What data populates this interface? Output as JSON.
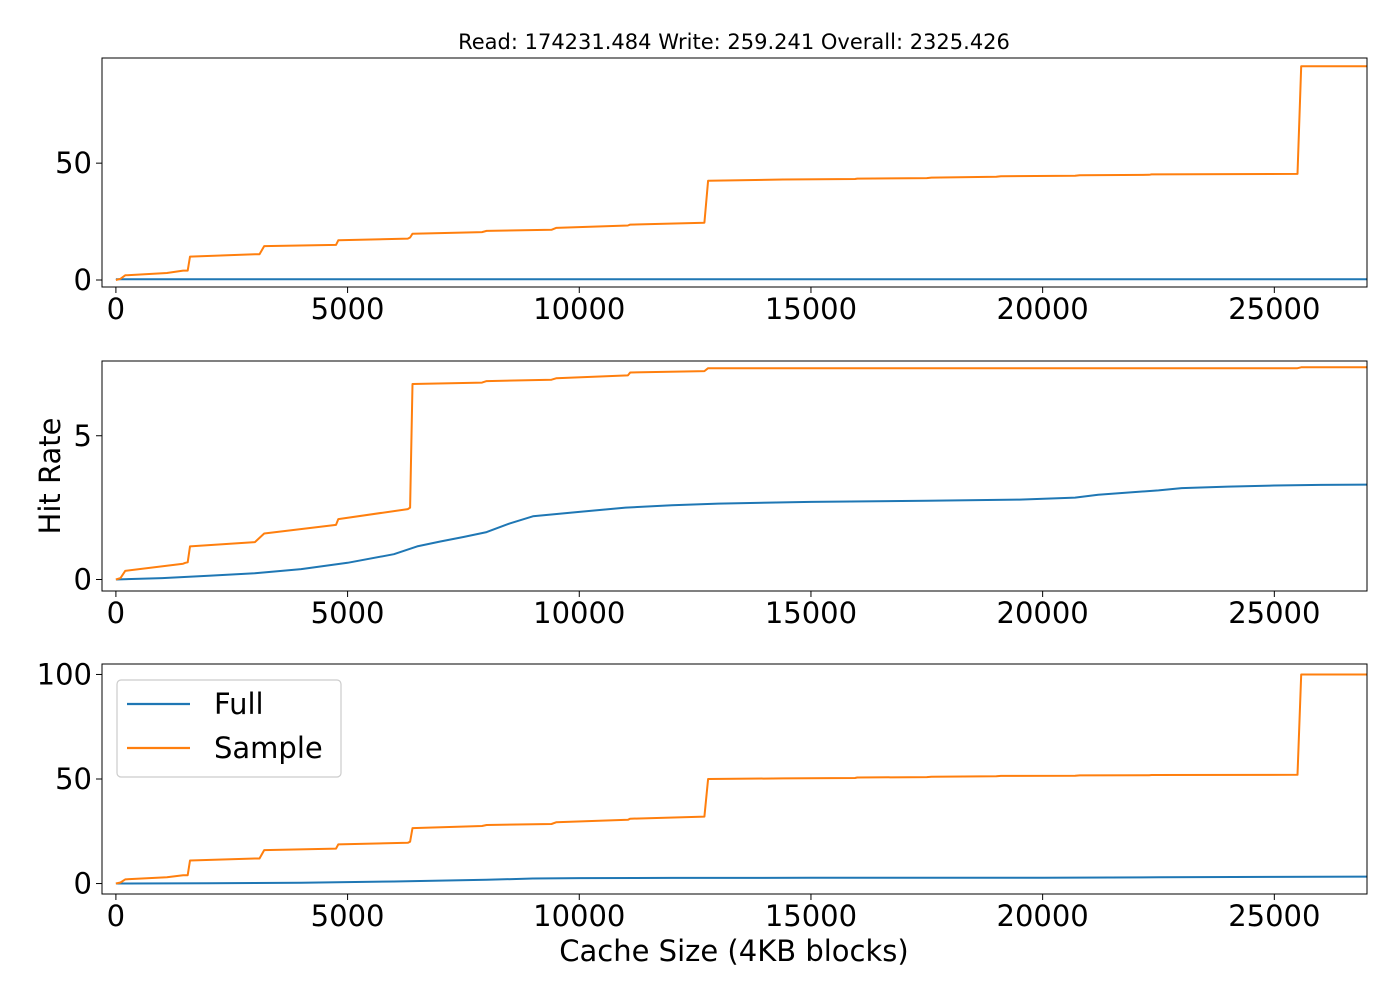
{
  "figure": {
    "title": "Read: 174231.484 Write: 259.241 Overall: 2325.426",
    "xlabel": "Cache Size (4KB blocks)",
    "ylabel": "Hit Rate"
  },
  "legend": {
    "location": "upper-left",
    "entries": [
      {
        "label": "Full",
        "color": "#1f77b4"
      },
      {
        "label": "Sample",
        "color": "#ff7f0e"
      }
    ]
  },
  "chart_data": [
    {
      "type": "line",
      "panel": "top",
      "xlim": [
        -300,
        27000
      ],
      "ylim": [
        -3,
        95
      ],
      "xticks": [
        0,
        5000,
        10000,
        15000,
        20000,
        25000
      ],
      "yticks": [
        0,
        50
      ],
      "series": [
        {
          "name": "Full",
          "color": "#1f77b4",
          "x": [
            0,
            27000
          ],
          "y": [
            0.3,
            0.3
          ]
        },
        {
          "name": "Sample",
          "color": "#ff7f0e",
          "x": [
            0,
            100,
            200,
            1100,
            1450,
            1550,
            1600,
            3000,
            3100,
            3200,
            4750,
            4800,
            6300,
            6350,
            6400,
            7900,
            8000,
            9400,
            9500,
            11050,
            11100,
            12700,
            12780,
            14400,
            15950,
            16000,
            17500,
            17600,
            19000,
            19100,
            20700,
            20800,
            22300,
            22350,
            25500,
            25580,
            27000
          ],
          "y": [
            0,
            0.5,
            2,
            3,
            4,
            4,
            10,
            11,
            11,
            14.5,
            15,
            17,
            17.7,
            18.2,
            19.8,
            20.5,
            21,
            21.5,
            22.3,
            23.3,
            23.7,
            24.5,
            42.5,
            43,
            43.2,
            43.4,
            43.6,
            43.8,
            44.2,
            44.4,
            44.6,
            44.8,
            45,
            45.2,
            45.4,
            91.5,
            91.5
          ]
        }
      ]
    },
    {
      "type": "line",
      "panel": "middle",
      "xlim": [
        -300,
        27000
      ],
      "ylim": [
        -0.4,
        7.6
      ],
      "xticks": [
        0,
        5000,
        10000,
        15000,
        20000,
        25000
      ],
      "yticks": [
        0,
        5
      ],
      "series": [
        {
          "name": "Full",
          "color": "#1f77b4",
          "x": [
            0,
            1000,
            2000,
            3000,
            4000,
            5000,
            6000,
            6500,
            7000,
            7500,
            8000,
            8500,
            9000,
            10000,
            11000,
            12000,
            13000,
            15000,
            17500,
            19500,
            20700,
            21200,
            22500,
            23000,
            24000,
            25000,
            26000,
            27000
          ],
          "y": [
            0,
            0.05,
            0.13,
            0.22,
            0.36,
            0.58,
            0.88,
            1.15,
            1.32,
            1.48,
            1.65,
            1.95,
            2.2,
            2.35,
            2.5,
            2.58,
            2.64,
            2.7,
            2.74,
            2.78,
            2.85,
            2.95,
            3.1,
            3.18,
            3.23,
            3.27,
            3.29,
            3.3
          ]
        },
        {
          "name": "Sample",
          "color": "#ff7f0e",
          "x": [
            0,
            100,
            200,
            1450,
            1500,
            1550,
            1600,
            3000,
            3200,
            4750,
            4800,
            6300,
            6350,
            6400,
            7900,
            8000,
            9400,
            9500,
            11050,
            11100,
            12700,
            12780,
            25500,
            25580,
            27000
          ],
          "y": [
            0,
            0.05,
            0.3,
            0.55,
            0.58,
            0.6,
            1.15,
            1.3,
            1.6,
            1.9,
            2.1,
            2.45,
            2.5,
            6.8,
            6.85,
            6.9,
            6.95,
            7.0,
            7.1,
            7.2,
            7.25,
            7.35,
            7.35,
            7.38,
            7.38
          ]
        }
      ]
    },
    {
      "type": "line",
      "panel": "bottom",
      "xlim": [
        -300,
        27000
      ],
      "ylim": [
        -5,
        105
      ],
      "xticks": [
        0,
        5000,
        10000,
        15000,
        20000,
        25000
      ],
      "yticks": [
        0,
        50,
        100
      ],
      "series": [
        {
          "name": "Full",
          "color": "#1f77b4",
          "x": [
            0,
            2000,
            4000,
            6000,
            8000,
            9000,
            10000,
            12000,
            15000,
            20000,
            22500,
            25000,
            27000
          ],
          "y": [
            0,
            0.1,
            0.4,
            1,
            1.8,
            2.4,
            2.6,
            2.7,
            2.75,
            2.8,
            3.0,
            3.2,
            3.3
          ]
        },
        {
          "name": "Sample",
          "color": "#ff7f0e",
          "x": [
            0,
            100,
            200,
            1100,
            1450,
            1550,
            1600,
            3000,
            3100,
            3200,
            4750,
            4800,
            6300,
            6350,
            6400,
            7900,
            8000,
            9400,
            9500,
            11050,
            11100,
            12700,
            12780,
            14400,
            15950,
            16000,
            17500,
            17600,
            19000,
            19100,
            20700,
            20800,
            22300,
            22350,
            25500,
            25580,
            27000
          ],
          "y": [
            0,
            0.5,
            2,
            3,
            4,
            4,
            11,
            12,
            12,
            16,
            16.7,
            18.7,
            19.5,
            20,
            26.5,
            27.5,
            28,
            28.5,
            29.3,
            30.5,
            31,
            32,
            50,
            50.3,
            50.5,
            50.7,
            50.9,
            51.1,
            51.3,
            51.5,
            51.6,
            51.7,
            51.8,
            51.9,
            52,
            100,
            100
          ]
        }
      ]
    }
  ]
}
